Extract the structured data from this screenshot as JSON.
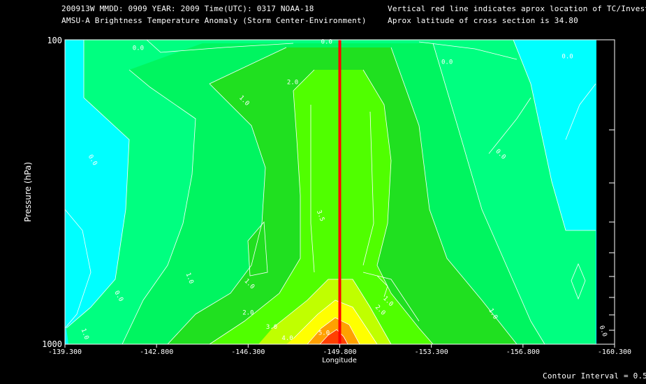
{
  "header": {
    "line1_left": "200913W  MMDD: 0909 YEAR: 2009 Time(UTC): 0317 NOAA-18",
    "line2_left": "AMSU-A Brightness Temperature Anomaly (Storm Center-Environment)",
    "line1_right": "Vertical red line indicates aprox location of TC/Invest",
    "line2_right": "Aprox latitude of cross section is 34.80"
  },
  "footer": {
    "contour_interval": "Contour Interval = 0.5K"
  },
  "chart_data": {
    "type": "heatmap",
    "title": "AMSU-A Brightness Temperature Anomaly (Storm Center-Environment)",
    "xlabel": "Longitude",
    "ylabel": "Pressure (hPa)",
    "x_tick_labels": [
      "-139.300",
      "-142.800",
      "-146.300",
      "-149.800",
      "-153.300",
      "-156.800",
      "-160.300"
    ],
    "x_tick_values": [
      -139.3,
      -142.8,
      -146.3,
      -149.8,
      -153.3,
      -156.8,
      -160.3
    ],
    "xlim": [
      -139.3,
      -160.3
    ],
    "y_tick_labels": [
      "100",
      "1000"
    ],
    "ylim": [
      1000,
      100
    ],
    "y_scale": "log",
    "storm_center_longitude": -149.8,
    "contour_interval_K": 0.5,
    "contour_labels": [
      {
        "text": "0.0",
        "x": -140.3,
        "p": 250,
        "rot": 60
      },
      {
        "text": "0.0",
        "x": -142.1,
        "p": 108,
        "rot": 0
      },
      {
        "text": "1.0",
        "x": -146.1,
        "p": 160,
        "rot": 45
      },
      {
        "text": "2.0",
        "x": -148.0,
        "p": 140,
        "rot": 0
      },
      {
        "text": "0.0",
        "x": -149.3,
        "p": 103,
        "rot": 0
      },
      {
        "text": "0.0",
        "x": -153.9,
        "p": 120,
        "rot": 0
      },
      {
        "text": "0.0",
        "x": -158.5,
        "p": 115,
        "rot": 0
      },
      {
        "text": "0.0",
        "x": -155.9,
        "p": 240,
        "rot": 45
      },
      {
        "text": "3.5",
        "x": -149.0,
        "p": 380,
        "rot": 70
      },
      {
        "text": "1.0",
        "x": -144.0,
        "p": 610,
        "rot": 70
      },
      {
        "text": "0.0",
        "x": -141.3,
        "p": 700,
        "rot": 60
      },
      {
        "text": "1.0",
        "x": -146.3,
        "p": 640,
        "rot": 45
      },
      {
        "text": "2.0",
        "x": -146.3,
        "p": 800,
        "rot": 0
      },
      {
        "text": "3.0",
        "x": -147.2,
        "p": 890,
        "rot": 0
      },
      {
        "text": "4.0",
        "x": -147.8,
        "p": 970,
        "rot": 0
      },
      {
        "text": "5.0",
        "x": -149.2,
        "p": 930,
        "rot": 0
      },
      {
        "text": "1.0",
        "x": -140.0,
        "p": 930,
        "rot": 70
      },
      {
        "text": "2.0",
        "x": -151.3,
        "p": 780,
        "rot": 45
      },
      {
        "text": "1.0",
        "x": -151.6,
        "p": 730,
        "rot": 45
      },
      {
        "text": "1.0",
        "x": -155.6,
        "p": 800,
        "rot": 60
      },
      {
        "text": "0.0",
        "x": -159.8,
        "p": 910,
        "rot": 70
      }
    ],
    "colors": {
      "cyan": "#00ffff",
      "bright_green": "#00ff80",
      "green_mid": "#00f560",
      "green_deep": "#20e020",
      "lime": "#50ff00",
      "yellow_green": "#c0ff00",
      "yellow": "#ffff00",
      "orange": "#ffa000",
      "red": "#ff4000",
      "storm_line": "#ff0000",
      "background": "#000000",
      "foreground": "#ffffff"
    }
  }
}
